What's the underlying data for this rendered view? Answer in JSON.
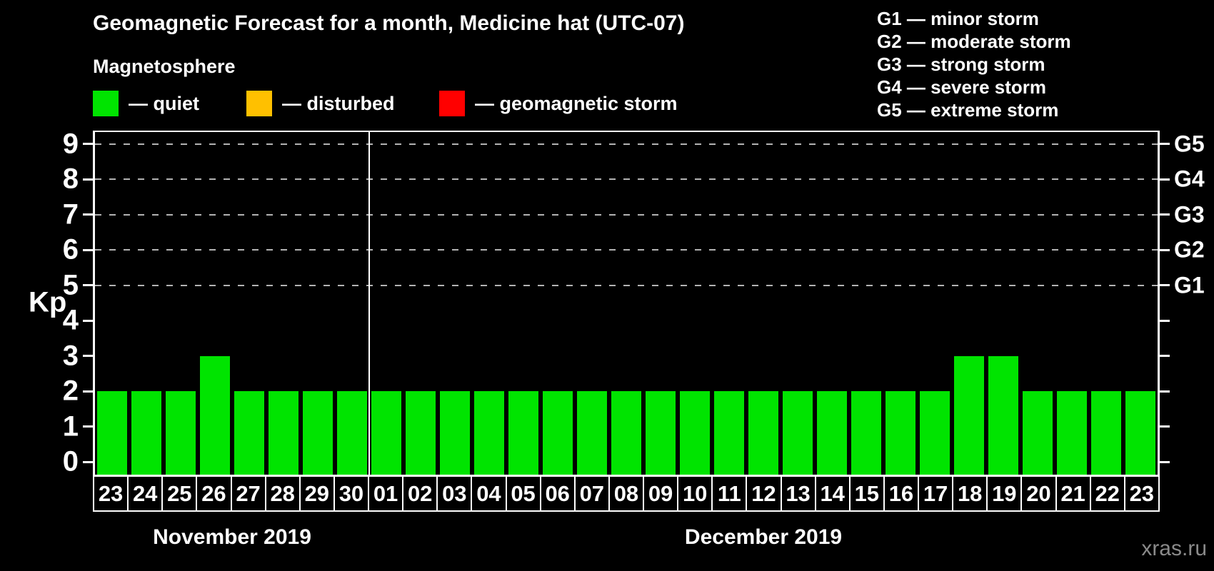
{
  "title": "Geomagnetic Forecast for a month, Medicine hat (UTC-07)",
  "subtitle": "Magnetosphere",
  "legend": {
    "items": [
      {
        "name": "quiet",
        "label": "— quiet",
        "color": "#00e400"
      },
      {
        "name": "disturbed",
        "label": "— disturbed",
        "color": "#ffc000"
      },
      {
        "name": "geomagnetic-storm",
        "label": "— geomagnetic storm",
        "color": "#ff0000"
      }
    ]
  },
  "storm_scale_legend": {
    "lines": [
      "G1 — minor storm",
      "G2 — moderate storm",
      "G3 — strong storm",
      "G4 — severe storm",
      "G5 — extreme storm"
    ]
  },
  "watermark": "xras.ru",
  "chart_data": {
    "type": "bar",
    "title": "Geomagnetic Forecast for a month, Medicine hat (UTC-07)",
    "ylabel": "Kp",
    "yticks": [
      0,
      1,
      2,
      3,
      4,
      5,
      6,
      7,
      8,
      9
    ],
    "ylim": [
      0,
      9
    ],
    "grid": "dashed horizontal gridlines at Kp 5,6,7,8,9 only",
    "legend_position": "top-left",
    "bar_color": "#00e400",
    "bar_color_meaning": "quiet",
    "gridline_color": "#b3b3b3",
    "right_axis_labels": [
      {
        "label": "G1",
        "kp": 5
      },
      {
        "label": "G2",
        "kp": 6
      },
      {
        "label": "G3",
        "kp": 7
      },
      {
        "label": "G4",
        "kp": 8
      },
      {
        "label": "G5",
        "kp": 9
      }
    ],
    "months": [
      {
        "label": "November 2019",
        "days": [
          "23",
          "24",
          "25",
          "26",
          "27",
          "28",
          "29",
          "30"
        ],
        "values": [
          2,
          2,
          2,
          3,
          2,
          2,
          2,
          2
        ]
      },
      {
        "label": "December 2019",
        "days": [
          "01",
          "02",
          "03",
          "04",
          "05",
          "06",
          "07",
          "08",
          "09",
          "10",
          "11",
          "12",
          "13",
          "14",
          "15",
          "16",
          "17",
          "18",
          "19",
          "20",
          "21",
          "22",
          "23"
        ],
        "values": [
          2,
          2,
          2,
          2,
          2,
          2,
          2,
          2,
          2,
          2,
          2,
          2,
          2,
          2,
          2,
          2,
          2,
          3,
          3,
          2,
          2,
          2,
          2
        ]
      }
    ]
  }
}
